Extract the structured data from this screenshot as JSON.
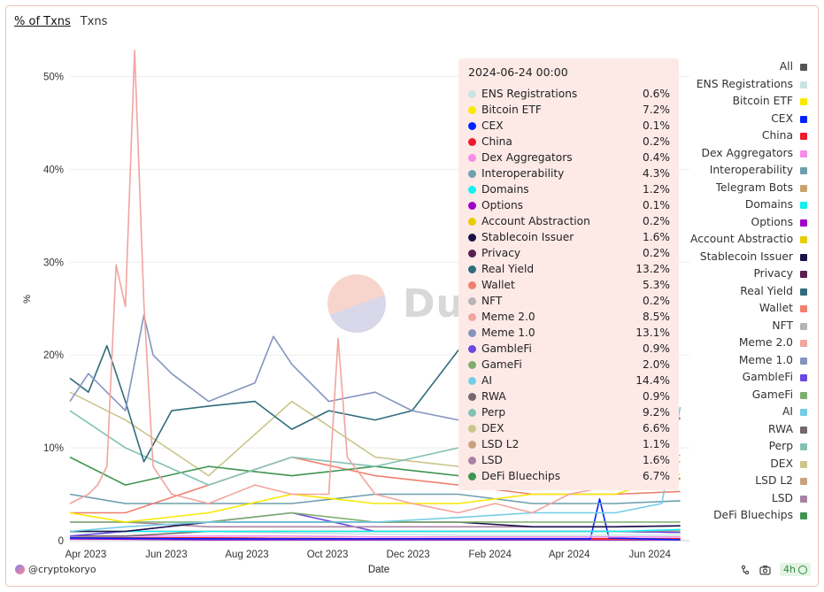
{
  "tabs": [
    {
      "label": "% of Txns",
      "active": true
    },
    {
      "label": "Txns",
      "active": false
    }
  ],
  "watermark": "Dune",
  "footer": {
    "user": "@cryptokoryo",
    "refresh": "4h"
  },
  "tooltip": {
    "date": "2024-06-24 00:00",
    "rows": [
      {
        "name": "ENS Registrations",
        "value": "0.6%",
        "color": "#c9e4e4"
      },
      {
        "name": "Bitcoin ETF",
        "value": "7.2%",
        "color": "#f7e900"
      },
      {
        "name": "CEX",
        "value": "0.1%",
        "color": "#0022ff"
      },
      {
        "name": "China",
        "value": "0.2%",
        "color": "#ef1a2a"
      },
      {
        "name": "Dex Aggregators",
        "value": "0.4%",
        "color": "#f48ce9"
      },
      {
        "name": "Interoperability",
        "value": "4.3%",
        "color": "#6f9ead"
      },
      {
        "name": "Domains",
        "value": "1.2%",
        "color": "#12f0f0"
      },
      {
        "name": "Options",
        "value": "0.1%",
        "color": "#a000c8"
      },
      {
        "name": "Account Abstraction",
        "value": "0.2%",
        "color": "#e6cd00"
      },
      {
        "name": "Stablecoin Issuer",
        "value": "1.6%",
        "color": "#1a1148"
      },
      {
        "name": "Privacy",
        "value": "0.2%",
        "color": "#5a1f4f"
      },
      {
        "name": "Real Yield",
        "value": "13.2%",
        "color": "#2f6c7c"
      },
      {
        "name": "Wallet",
        "value": "5.3%",
        "color": "#ef7f6f"
      },
      {
        "name": "NFT",
        "value": "0.2%",
        "color": "#b5b5b5"
      },
      {
        "name": "Meme 2.0",
        "value": "8.5%",
        "color": "#f2a49e"
      },
      {
        "name": "Meme 1.0",
        "value": "13.1%",
        "color": "#8594bf"
      },
      {
        "name": "GambleFi",
        "value": "0.9%",
        "color": "#6a49e0"
      },
      {
        "name": "GameFi",
        "value": "2.0%",
        "color": "#7fad6e"
      },
      {
        "name": "AI",
        "value": "14.4%",
        "color": "#74cde6"
      },
      {
        "name": "RWA",
        "value": "0.9%",
        "color": "#75676a"
      },
      {
        "name": "Perp",
        "value": "9.2%",
        "color": "#82c2b4"
      },
      {
        "name": "DEX",
        "value": "6.6%",
        "color": "#cbc68c"
      },
      {
        "name": "LSD L2",
        "value": "1.1%",
        "color": "#c8a27e"
      },
      {
        "name": "LSD",
        "value": "1.6%",
        "color": "#a882a4"
      },
      {
        "name": "DeFi Bluechips",
        "value": "6.7%",
        "color": "#3d9550"
      }
    ]
  },
  "legend": [
    {
      "label": "All",
      "color": "#555555"
    },
    {
      "label": "ENS Registrations",
      "color": "#c9e4e4"
    },
    {
      "label": "Bitcoin ETF",
      "color": "#f7e900"
    },
    {
      "label": "CEX",
      "color": "#0022ff"
    },
    {
      "label": "China",
      "color": "#ef1a2a"
    },
    {
      "label": "Dex Aggregators",
      "color": "#f48ce9"
    },
    {
      "label": "Interoperability",
      "color": "#6f9ead"
    },
    {
      "label": "Telegram Bots",
      "color": "#c8a46c"
    },
    {
      "label": "Domains",
      "color": "#12f0f0"
    },
    {
      "label": "Options",
      "color": "#a000c8"
    },
    {
      "label": "Account Abstraction",
      "color": "#e6cd00"
    },
    {
      "label": "Stablecoin Issuer",
      "color": "#1a1148"
    },
    {
      "label": "Privacy",
      "color": "#5a1f4f"
    },
    {
      "label": "Real Yield",
      "color": "#2f6c7c"
    },
    {
      "label": "Wallet",
      "color": "#ef7f6f"
    },
    {
      "label": "NFT",
      "color": "#b5b5b5"
    },
    {
      "label": "Meme 2.0",
      "color": "#f2a49e"
    },
    {
      "label": "Meme 1.0",
      "color": "#8594bf"
    },
    {
      "label": "GambleFi",
      "color": "#6a49e0"
    },
    {
      "label": "GameFi",
      "color": "#7fad6e"
    },
    {
      "label": "AI",
      "color": "#74cde6"
    },
    {
      "label": "RWA",
      "color": "#75676a"
    },
    {
      "label": "Perp",
      "color": "#82c2b4"
    },
    {
      "label": "DEX",
      "color": "#cbc68c"
    },
    {
      "label": "LSD L2",
      "color": "#c8a27e"
    },
    {
      "label": "LSD",
      "color": "#a882a4"
    },
    {
      "label": "DeFi Bluechips",
      "color": "#3d9550"
    }
  ],
  "chart_data": {
    "type": "line",
    "xlabel": "Date",
    "ylabel": "%",
    "ylim": [
      0,
      53
    ],
    "yticks": [
      0,
      10,
      20,
      30,
      40,
      50
    ],
    "ytick_labels": [
      "0",
      "10%",
      "20%",
      "30%",
      "40%",
      "50%"
    ],
    "xlim": [
      "2023-03-20",
      "2024-07-01"
    ],
    "xticks": [
      "2023-04-01",
      "2023-06-01",
      "2023-08-01",
      "2023-10-01",
      "2023-12-01",
      "2024-02-01",
      "2024-04-01",
      "2024-06-01"
    ],
    "xtick_labels": [
      "Apr 2023",
      "Jun 2023",
      "Aug 2023",
      "Oct 2023",
      "Dec 2023",
      "Feb 2024",
      "Apr 2024",
      "Jun 2024"
    ],
    "grid": "horizontal",
    "legend_position": "right",
    "series": [
      {
        "name": "Meme 2.0",
        "color": "#f2a49e",
        "x": [
          "2023-03-20",
          "2023-04-03",
          "2023-04-10",
          "2023-04-17",
          "2023-04-24",
          "2023-05-01",
          "2023-05-08",
          "2023-05-15",
          "2023-05-22",
          "2023-06-05",
          "2023-07-03",
          "2023-08-07",
          "2023-09-04",
          "2023-10-02",
          "2023-10-09",
          "2023-10-16",
          "2023-11-06",
          "2023-12-04",
          "2024-01-08",
          "2024-02-05",
          "2024-03-04",
          "2024-04-01",
          "2024-05-06",
          "2024-06-03",
          "2024-06-24"
        ],
        "values": [
          4,
          5,
          6,
          8,
          29.7,
          25.2,
          52.8,
          25.5,
          8,
          5,
          4,
          6,
          5,
          5,
          21.8,
          9,
          5,
          4,
          3,
          4,
          3,
          5,
          6,
          8,
          8.5
        ]
      },
      {
        "name": "Meme 1.0",
        "color": "#8594bf",
        "x": [
          "2023-03-20",
          "2023-04-03",
          "2023-04-17",
          "2023-05-01",
          "2023-05-15",
          "2023-05-22",
          "2023-06-05",
          "2023-07-03",
          "2023-08-07",
          "2023-08-21",
          "2023-09-04",
          "2023-10-02",
          "2023-11-06",
          "2023-12-04",
          "2024-01-08",
          "2024-02-05",
          "2024-03-04",
          "2024-04-01",
          "2024-05-06",
          "2024-06-03",
          "2024-06-24"
        ],
        "values": [
          15,
          18,
          16,
          14,
          24.3,
          20,
          18,
          15,
          17,
          22,
          19,
          15,
          16,
          14,
          13,
          12,
          12,
          13,
          13,
          13,
          13.1
        ]
      },
      {
        "name": "Real Yield",
        "color": "#2f6c7c",
        "x": [
          "2023-03-20",
          "2023-04-03",
          "2023-04-17",
          "2023-05-01",
          "2023-05-15",
          "2023-06-05",
          "2023-07-03",
          "2023-08-07",
          "2023-09-04",
          "2023-10-02",
          "2023-11-06",
          "2023-12-04",
          "2024-01-08",
          "2024-02-05",
          "2024-03-04",
          "2024-04-01",
          "2024-05-06",
          "2024-06-03",
          "2024-06-24"
        ],
        "values": [
          17.5,
          16,
          21,
          15,
          8.5,
          14,
          14.5,
          15,
          12,
          14,
          13,
          14,
          20.5,
          15,
          14,
          14,
          14,
          13,
          13.2
        ]
      },
      {
        "name": "AI",
        "color": "#74cde6",
        "x": [
          "2023-03-20",
          "2023-05-01",
          "2023-07-03",
          "2023-09-04",
          "2023-11-06",
          "2024-01-08",
          "2024-03-04",
          "2024-05-06",
          "2024-06-10",
          "2024-06-24"
        ],
        "values": [
          1,
          1.5,
          2,
          2,
          2,
          2.5,
          3,
          3,
          4,
          14.4
        ]
      },
      {
        "name": "Perp",
        "color": "#82c2b4",
        "x": [
          "2023-03-20",
          "2023-05-01",
          "2023-07-03",
          "2023-09-04",
          "2023-11-06",
          "2024-01-08",
          "2024-03-04",
          "2024-05-06",
          "2024-06-24"
        ],
        "values": [
          14,
          10,
          6,
          9,
          8,
          10,
          9,
          9,
          9.2
        ]
      },
      {
        "name": "DeFi Bluechips",
        "color": "#3d9550",
        "x": [
          "2023-03-20",
          "2023-05-01",
          "2023-07-03",
          "2023-09-04",
          "2023-11-06",
          "2024-01-08",
          "2024-03-04",
          "2024-05-06",
          "2024-06-24"
        ],
        "values": [
          9,
          6,
          8,
          7,
          8,
          7,
          7,
          7,
          6.7
        ]
      },
      {
        "name": "Bitcoin ETF",
        "color": "#f7e900",
        "x": [
          "2023-03-20",
          "2023-05-01",
          "2023-07-03",
          "2023-09-04",
          "2023-11-06",
          "2024-01-08",
          "2024-03-04",
          "2024-05-06",
          "2024-06-24"
        ],
        "values": [
          3,
          2,
          3,
          5,
          4,
          4,
          5,
          5,
          7.2
        ]
      },
      {
        "name": "DEX",
        "color": "#cbc68c",
        "x": [
          "2023-03-20",
          "2023-05-01",
          "2023-07-03",
          "2023-09-04",
          "2023-11-06",
          "2024-01-08",
          "2024-03-04",
          "2024-05-06",
          "2024-06-24"
        ],
        "values": [
          16,
          13,
          7,
          15,
          9,
          8,
          7,
          6,
          6.6
        ]
      },
      {
        "name": "Wallet",
        "color": "#ef7f6f",
        "x": [
          "2023-03-20",
          "2023-05-01",
          "2023-07-03",
          "2023-09-04",
          "2023-11-06",
          "2024-01-08",
          "2024-03-04",
          "2024-05-06",
          "2024-06-24"
        ],
        "values": [
          3,
          3,
          6,
          9,
          7,
          6,
          5,
          5,
          5.3
        ]
      },
      {
        "name": "Interoperability",
        "color": "#6f9ead",
        "x": [
          "2023-03-20",
          "2023-05-01",
          "2023-07-03",
          "2023-09-04",
          "2023-11-06",
          "2024-01-08",
          "2024-03-04",
          "2024-05-06",
          "2024-06-24"
        ],
        "values": [
          5,
          4,
          4,
          4,
          5,
          5,
          4,
          4,
          4.3
        ]
      },
      {
        "name": "GameFi",
        "color": "#7fad6e",
        "x": [
          "2023-03-20",
          "2023-05-01",
          "2023-07-03",
          "2023-09-04",
          "2023-11-06",
          "2024-01-08",
          "2024-03-04",
          "2024-05-06",
          "2024-06-24"
        ],
        "values": [
          2,
          2,
          2,
          3,
          2,
          2,
          2,
          2,
          2.0
        ]
      },
      {
        "name": "Stablecoin Issuer",
        "color": "#1a1148",
        "x": [
          "2023-03-20",
          "2023-05-01",
          "2023-07-03",
          "2023-09-04",
          "2023-11-06",
          "2024-01-08",
          "2024-03-04",
          "2024-05-06",
          "2024-06-24"
        ],
        "values": [
          1,
          1,
          2,
          2,
          2,
          2,
          1.5,
          1.5,
          1.6
        ]
      },
      {
        "name": "LSD",
        "color": "#a882a4",
        "x": [
          "2023-03-20",
          "2023-05-01",
          "2023-07-03",
          "2023-09-04",
          "2023-11-06",
          "2024-01-08",
          "2024-03-04",
          "2024-05-06",
          "2024-06-24"
        ],
        "values": [
          2,
          2,
          1.5,
          1.5,
          1.5,
          1.5,
          1.5,
          1.5,
          1.6
        ]
      },
      {
        "name": "Domains",
        "color": "#12f0f0",
        "x": [
          "2023-03-20",
          "2023-05-01",
          "2023-07-03",
          "2023-09-04",
          "2023-11-06",
          "2024-01-08",
          "2024-03-04",
          "2024-05-06",
          "2024-06-24"
        ],
        "values": [
          1,
          1,
          1,
          1,
          1,
          1,
          1,
          1,
          1.2
        ]
      },
      {
        "name": "LSD L2",
        "color": "#c8a27e",
        "x": [
          "2023-03-20",
          "2023-05-01",
          "2023-07-03",
          "2023-09-04",
          "2023-11-06",
          "2024-01-08",
          "2024-03-04",
          "2024-05-06",
          "2024-06-24"
        ],
        "values": [
          1,
          1,
          1,
          1,
          1,
          1,
          1,
          1,
          1.1
        ]
      },
      {
        "name": "GambleFi",
        "color": "#6a49e0",
        "x": [
          "2023-03-20",
          "2023-05-01",
          "2023-07-03",
          "2023-09-04",
          "2023-11-06",
          "2024-01-08",
          "2024-03-04",
          "2024-05-06",
          "2024-06-24"
        ],
        "values": [
          0.5,
          1,
          2,
          3,
          1,
          1,
          1,
          1,
          0.9
        ]
      },
      {
        "name": "RWA",
        "color": "#75676a",
        "x": [
          "2023-03-20",
          "2023-05-01",
          "2023-07-03",
          "2023-09-04",
          "2023-11-06",
          "2024-01-08",
          "2024-03-04",
          "2024-05-06",
          "2024-06-24"
        ],
        "values": [
          0.5,
          0.5,
          1,
          1,
          1,
          1,
          1,
          1,
          0.9
        ]
      },
      {
        "name": "ENS Registrations",
        "color": "#c9e4e4",
        "x": [
          "2023-03-20",
          "2023-05-01",
          "2023-07-03",
          "2023-09-04",
          "2023-11-06",
          "2024-01-08",
          "2024-03-04",
          "2024-05-06",
          "2024-06-24"
        ],
        "values": [
          1,
          1,
          1,
          0.8,
          0.7,
          0.6,
          0.6,
          0.6,
          0.6
        ]
      },
      {
        "name": "Dex Aggregators",
        "color": "#f48ce9",
        "x": [
          "2023-03-20",
          "2023-05-01",
          "2023-07-03",
          "2023-09-04",
          "2023-11-06",
          "2024-01-08",
          "2024-03-04",
          "2024-05-06",
          "2024-06-24"
        ],
        "values": [
          0.5,
          0.5,
          0.5,
          0.5,
          0.4,
          0.4,
          0.4,
          0.4,
          0.4
        ]
      },
      {
        "name": "CEX",
        "color": "#0022ff",
        "x": [
          "2023-03-20",
          "2023-07-03",
          "2023-11-06",
          "2024-03-04",
          "2024-04-17",
          "2024-04-24",
          "2024-05-01",
          "2024-06-24"
        ],
        "values": [
          0.3,
          0.2,
          0.2,
          0.2,
          0.2,
          4.5,
          0.3,
          0.1
        ]
      },
      {
        "name": "China",
        "color": "#ef1a2a",
        "x": [
          "2023-03-20",
          "2023-07-03",
          "2023-11-06",
          "2024-03-04",
          "2024-06-24"
        ],
        "values": [
          0.3,
          0.3,
          0.2,
          0.2,
          0.2
        ]
      },
      {
        "name": "Account Abstraction",
        "color": "#e6cd00",
        "x": [
          "2023-03-20",
          "2023-07-03",
          "2023-11-06",
          "2024-03-04",
          "2024-06-24"
        ],
        "values": [
          0.3,
          0.3,
          0.2,
          0.2,
          0.2
        ]
      },
      {
        "name": "Privacy",
        "color": "#5a1f4f",
        "x": [
          "2023-03-20",
          "2023-07-03",
          "2023-11-06",
          "2024-03-04",
          "2024-06-24"
        ],
        "values": [
          0.3,
          0.3,
          0.2,
          0.2,
          0.2
        ]
      },
      {
        "name": "NFT",
        "color": "#b5b5b5",
        "x": [
          "2023-03-20",
          "2023-07-03",
          "2023-11-06",
          "2024-03-04",
          "2024-06-24"
        ],
        "values": [
          0.3,
          0.2,
          0.2,
          0.2,
          0.2
        ]
      },
      {
        "name": "Options",
        "color": "#a000c8",
        "x": [
          "2023-03-20",
          "2023-07-03",
          "2023-11-06",
          "2024-03-04",
          "2024-06-24"
        ],
        "values": [
          0.2,
          0.1,
          0.1,
          0.1,
          0.1
        ]
      }
    ]
  }
}
